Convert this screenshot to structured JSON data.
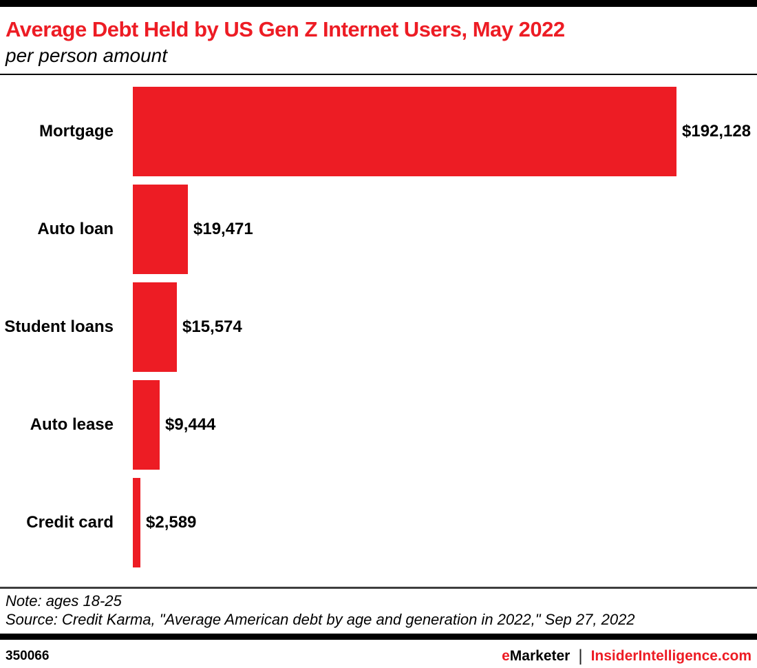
{
  "header": {
    "title": "Average Debt Held by US Gen Z Internet Users, May 2022",
    "subtitle": "per person amount"
  },
  "chart_data": {
    "type": "bar",
    "orientation": "horizontal",
    "title": "Average Debt Held by US Gen Z Internet Users, May 2022",
    "subtitle": "per person amount",
    "categories": [
      "Mortgage",
      "Auto loan",
      "Student loans",
      "Auto lease",
      "Credit card"
    ],
    "values": [
      192128,
      19471,
      15574,
      9444,
      2589
    ],
    "value_labels": [
      "$192,128",
      "$19,471",
      "$15,574",
      "$9,444",
      "$2,589"
    ],
    "bar_color": "#ed1c24",
    "xlim": [
      0,
      192128
    ],
    "grid": false,
    "legend": false
  },
  "footnotes": {
    "note": "Note: ages 18-25",
    "source": "Source: Credit Karma, \"Average American debt by age and generation in 2022,\" Sep 27, 2022"
  },
  "footer": {
    "chart_id": "350066",
    "brand_emarketer_e": "e",
    "brand_emarketer_rest": "Marketer",
    "separator": "|",
    "brand_insider": "InsiderIntelligence.com"
  }
}
